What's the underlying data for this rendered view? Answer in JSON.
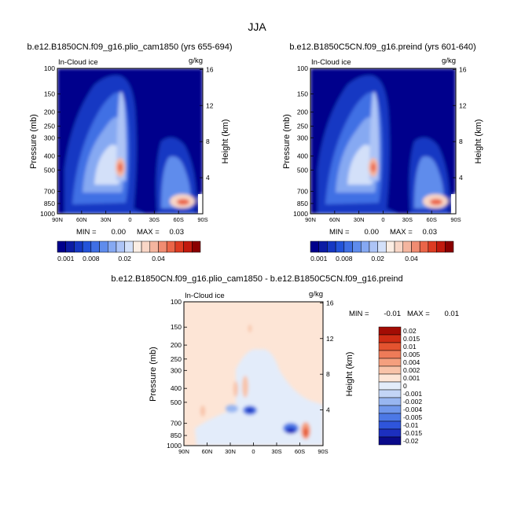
{
  "figure": {
    "title": "JJA",
    "top_left_subtitle": "b.e12.B1850CN.f09_g16.plio_cam1850 (yrs 655-694)",
    "top_right_subtitle": "b.e12.B1850C5CN.f09_g16.preind (yrs 601-640)",
    "diff_subtitle": "b.e12.B1850CN.f09_g16.plio_cam1850 - b.e12.B1850C5CN.f09_g16.preind"
  },
  "colors": {
    "abs_levels": [
      "#00008c",
      "#0c1ca4",
      "#1638c3",
      "#2353d9",
      "#3f6fe4",
      "#5f8cec",
      "#86a9f2",
      "#adc4f6",
      "#d3e0f9",
      "#fbeee4",
      "#f8d6c6",
      "#f4b59f",
      "#f08c72",
      "#ea6548",
      "#dd3b22",
      "#c11a0e",
      "#8a0000"
    ],
    "diff_levels": [
      "#0a0a8a",
      "#1c2fbf",
      "#2f55db",
      "#4c78e6",
      "#7097ec",
      "#98b6f1",
      "#c3d5f6",
      "#e3ecfa",
      "#fde5d6",
      "#f8c3a9",
      "#f49f7e",
      "#ee7b58",
      "#e4532f",
      "#cf2c14",
      "#a30c04"
    ]
  },
  "chart_data": [
    {
      "type": "heatmap",
      "panel": "plio_cam1850",
      "title": "b.e12.B1850CN.f09_g16.plio_cam1850 (yrs 655-694)",
      "left_string": "In-Cloud ice",
      "right_string": "g/kg",
      "xlabel": "",
      "ylabel": "Pressure (mb)",
      "ylabel_right": "Height (km)",
      "x_ticks": [
        "90N",
        "60N",
        "30N",
        "0",
        "30S",
        "60S",
        "90S"
      ],
      "y_ticks": [
        "100",
        "150",
        "200",
        "250",
        "300",
        "400",
        "500",
        "700",
        "850",
        "1000"
      ],
      "y_right_ticks": [
        "4",
        "8",
        "12",
        "16"
      ],
      "min_label": "MIN =",
      "min_value": "0.00",
      "max_label": "MAX =",
      "max_value": "0.03",
      "colorbar_labels": [
        "0.001",
        "0.008",
        "0.02",
        "0.04"
      ],
      "ylim": [
        1000,
        100
      ],
      "features": [
        {
          "lat": 12,
          "p": 480,
          "value": 0.03
        },
        {
          "lat": -62,
          "p": 850,
          "value": 0.03
        },
        {
          "lat": 58,
          "p": 450,
          "value": 0.012
        }
      ]
    },
    {
      "type": "heatmap",
      "panel": "preind",
      "title": "b.e12.B1850C5CN.f09_g16.preind (yrs 601-640)",
      "left_string": "In-Cloud ice",
      "right_string": "g/kg",
      "xlabel": "",
      "ylabel": "Pressure (mb)",
      "ylabel_right": "Height (km)",
      "x_ticks": [
        "90N",
        "60N",
        "30N",
        "0",
        "30S",
        "60S",
        "90S"
      ],
      "y_ticks": [
        "100",
        "150",
        "200",
        "250",
        "300",
        "400",
        "500",
        "700",
        "850",
        "1000"
      ],
      "y_right_ticks": [
        "4",
        "8",
        "12",
        "16"
      ],
      "min_label": "MIN =",
      "min_value": "0.00",
      "max_label": "MAX =",
      "max_value": "0.03",
      "colorbar_labels": [
        "0.001",
        "0.008",
        "0.02",
        "0.04"
      ],
      "ylim": [
        1000,
        100
      ],
      "features": [
        {
          "lat": 12,
          "p": 480,
          "value": 0.03
        },
        {
          "lat": -62,
          "p": 850,
          "value": 0.03
        },
        {
          "lat": 58,
          "p": 450,
          "value": 0.012
        }
      ]
    },
    {
      "type": "heatmap",
      "panel": "difference",
      "title": "b.e12.B1850CN.f09_g16.plio_cam1850 - b.e12.B1850C5CN.f09_g16.preind",
      "left_string": "In-Cloud ice",
      "right_string": "g/kg",
      "xlabel": "",
      "ylabel": "Pressure (mb)",
      "ylabel_right": "Height (km)",
      "x_ticks": [
        "90N",
        "60N",
        "30N",
        "0",
        "30S",
        "60S",
        "90S"
      ],
      "y_ticks": [
        "100",
        "150",
        "200",
        "250",
        "300",
        "400",
        "500",
        "700",
        "850",
        "1000"
      ],
      "y_right_ticks": [
        "4",
        "8",
        "12",
        "16"
      ],
      "min_label": "MIN =",
      "min_value": "-0.01",
      "max_label": "MAX =",
      "max_value": "0.01",
      "colorbar_labels": [
        "0.02",
        "0.015",
        "0.01",
        "0.005",
        "0.004",
        "0.002",
        "0.001",
        "0",
        "-0.001",
        "-0.002",
        "-0.004",
        "-0.005",
        "-0.01",
        "-0.015",
        "-0.02"
      ],
      "ylim": [
        1000,
        100
      ],
      "features": [
        {
          "lat": 3,
          "p": 550,
          "value": -0.01
        },
        {
          "lat": -62,
          "p": 850,
          "value": 0.01
        },
        {
          "lat": -50,
          "p": 760,
          "value": -0.01
        },
        {
          "lat": 12,
          "p": 450,
          "value": 0.005
        }
      ]
    }
  ]
}
